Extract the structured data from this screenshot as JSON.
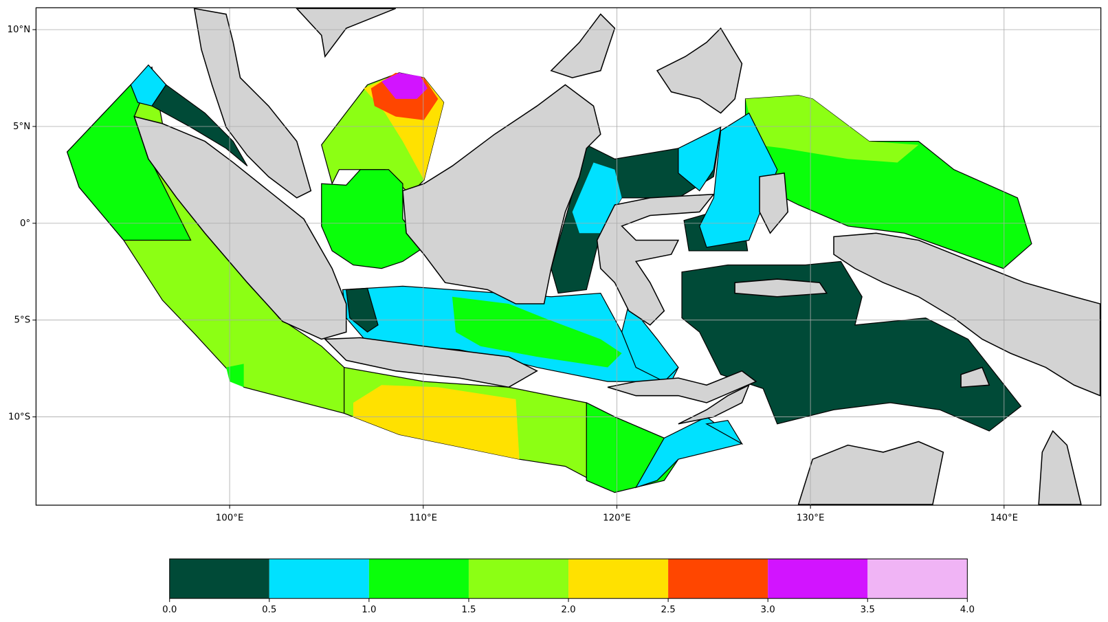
{
  "map": {
    "xlim": [
      90,
      145
    ],
    "ylim": [
      -14.56,
      11.13
    ],
    "xticks": [
      {
        "value": 100,
        "label": "100°E"
      },
      {
        "value": 110,
        "label": "110°E"
      },
      {
        "value": 120,
        "label": "120°E"
      },
      {
        "value": 130,
        "label": "130°E"
      },
      {
        "value": 140,
        "label": "140°E"
      }
    ],
    "yticks": [
      {
        "value": 10,
        "label": "10°N"
      },
      {
        "value": 5,
        "label": "5°N"
      },
      {
        "value": 0,
        "label": "0°"
      },
      {
        "value": -5,
        "label": "5°S"
      },
      {
        "value": -10,
        "label": "10°S"
      }
    ],
    "grid": true
  },
  "colorbar": {
    "ticks": [
      {
        "value": 0,
        "label": "0.0"
      },
      {
        "value": 0.5,
        "label": "0.5"
      },
      {
        "value": 1,
        "label": "1.0"
      },
      {
        "value": 1.5,
        "label": "1.5"
      },
      {
        "value": 2,
        "label": "2.0"
      },
      {
        "value": 2.5,
        "label": "2.5"
      },
      {
        "value": 3,
        "label": "3.0"
      },
      {
        "value": 3.5,
        "label": "3.5"
      },
      {
        "value": 4,
        "label": "4.0"
      }
    ],
    "colors": [
      "#004a37",
      "#00e1ff",
      "#0aff0a",
      "#8cff14",
      "#ffe100",
      "#ff4600",
      "#d214ff",
      "#f0b4f5"
    ]
  }
}
